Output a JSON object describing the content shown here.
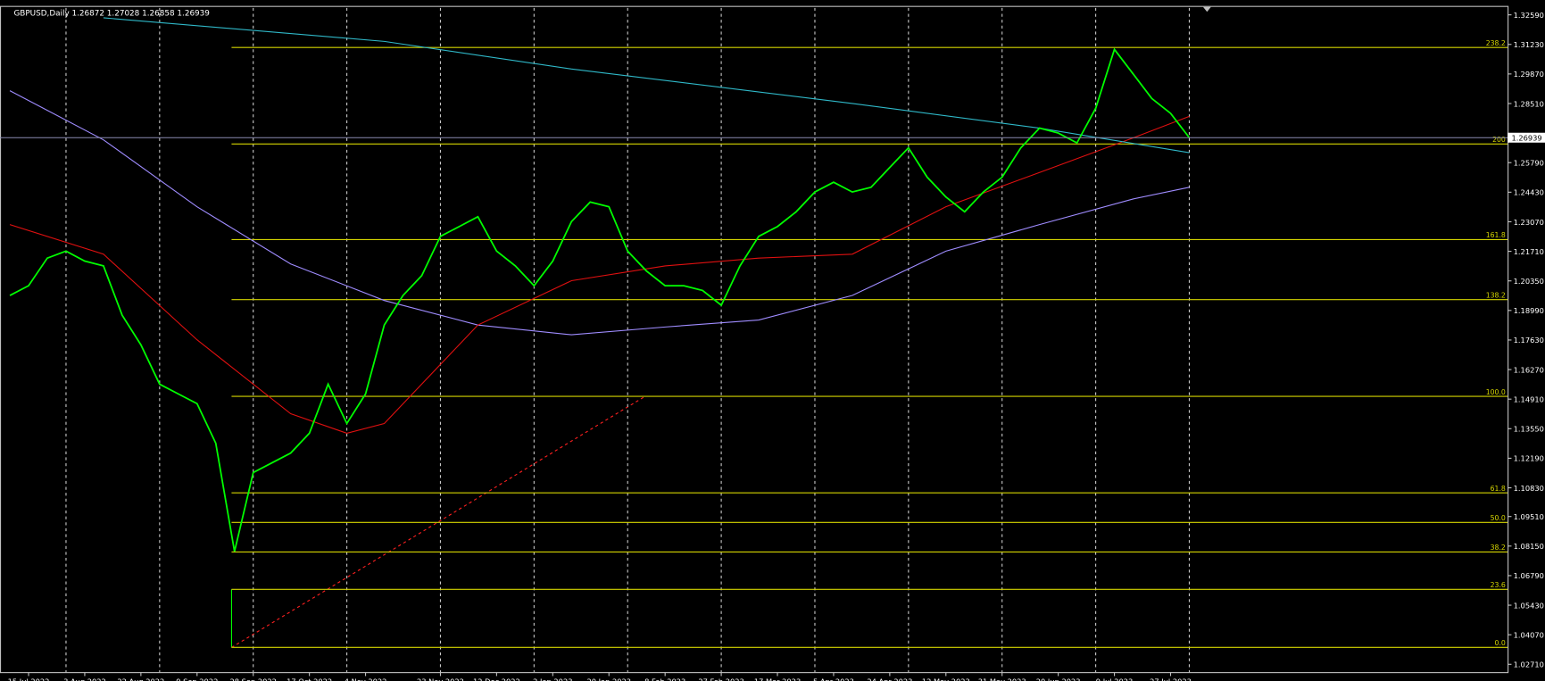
{
  "chart_data": {
    "type": "line",
    "title": "GBPUSD,Daily  1.26872 1.27028 1.26858 1.26939",
    "categories": [
      null,
      "15 Jul 2022",
      null,
      null,
      "3 Aug 2022",
      null,
      null,
      "22 Aug 2022",
      null,
      null,
      "9 Sep 2022",
      null,
      null,
      "28 Sep 2022",
      null,
      null,
      "17 Oct 2022",
      null,
      null,
      "4 Nov 2022",
      null,
      null,
      null,
      "23 Nov 2022",
      null,
      null,
      "12 Dec 2022",
      null,
      null,
      "2 Jan 2023",
      null,
      null,
      "20 Jan 2023",
      null,
      null,
      "8 Feb 2023",
      null,
      null,
      "27 Feb 2023",
      null,
      null,
      "17 Mar 2023",
      null,
      null,
      "5 Apr 2023",
      null,
      null,
      "24 Apr 2023",
      null,
      null,
      "12 May 2023",
      null,
      null,
      "31 May 2023",
      null,
      null,
      "20 Jun 2023",
      null,
      null,
      "9 Jul 2023",
      null,
      null,
      "27 Jul 2023",
      null
    ],
    "series": [
      {
        "color": "#00ff00",
        "values": [
          1.1968,
          1.2013,
          1.214,
          1.2172,
          1.2126,
          1.2104,
          1.1877,
          1.1741,
          1.156,
          1.1515,
          1.147,
          1.1288,
          1.079,
          1.1153,
          1.1198,
          1.1243,
          1.1334,
          1.156,
          1.1379,
          1.1515,
          1.1832,
          1.1968,
          1.2059,
          1.224,
          1.2285,
          1.233,
          1.2172,
          1.2104,
          1.2013,
          1.2126,
          1.2308,
          1.2398,
          1.2376,
          1.2172,
          1.2081,
          1.2013,
          1.2013,
          1.1991,
          1.1923,
          1.2104,
          1.224,
          1.2285,
          1.2353,
          1.2444,
          1.2489,
          1.2444,
          1.2466,
          1.2557,
          1.2647,
          1.2512,
          1.2421,
          1.2353,
          1.2444,
          1.2512,
          1.2647,
          1.2738,
          1.2715,
          1.267,
          1.2829,
          1.31,
          1.2987,
          1.2874,
          1.2806,
          1.2694
        ]
      }
    ],
    "indicators": [
      {
        "color": "#9f8cff",
        "x": [
          0,
          5,
          10,
          15,
          20,
          25,
          30,
          35,
          40,
          45,
          50,
          55,
          60,
          63
        ],
        "values": [
          1.291,
          1.2684,
          1.2376,
          1.2113,
          1.1945,
          1.1832,
          1.1787,
          1.1823,
          1.1855,
          1.1968,
          1.2172,
          1.2294,
          1.2412,
          1.2466
        ]
      },
      {
        "color": "#e01010",
        "x": [
          0,
          5,
          10,
          15,
          18,
          20,
          25,
          30,
          35,
          40,
          45,
          50,
          55,
          60,
          63
        ],
        "values": [
          1.2294,
          1.2158,
          1.1764,
          1.1424,
          1.1334,
          1.1379,
          1.1832,
          1.2036,
          1.2104,
          1.214,
          1.2158,
          1.2376,
          1.2534,
          1.2693,
          1.2792
        ]
      },
      {
        "color": "#2fb8c8",
        "x": [
          5,
          20,
          30,
          45,
          55,
          63
        ],
        "values": [
          1.3245,
          1.3137,
          1.301,
          1.2851,
          1.2738,
          1.2625
        ]
      }
    ],
    "ylim": [
      1.0235,
      1.3291
    ],
    "yticks": [
      {
        "value": 1.3259,
        "label": "1.32590"
      },
      {
        "value": 1.3123,
        "label": "1.31230"
      },
      {
        "value": 1.2987,
        "label": "1.29870"
      },
      {
        "value": 1.2851,
        "label": "1.28510"
      },
      {
        "value": 1.2579,
        "label": "1.25790"
      },
      {
        "value": 1.2443,
        "label": "1.24430"
      },
      {
        "value": 1.2307,
        "label": "1.23070"
      },
      {
        "value": 1.2171,
        "label": "1.21710"
      },
      {
        "value": 1.2035,
        "label": "1.20350"
      },
      {
        "value": 1.1899,
        "label": "1.18990"
      },
      {
        "value": 1.1763,
        "label": "1.17630"
      },
      {
        "value": 1.1627,
        "label": "1.16270"
      },
      {
        "value": 1.1491,
        "label": "1.14910"
      },
      {
        "value": 1.1355,
        "label": "1.13550"
      },
      {
        "value": 1.1219,
        "label": "1.12190"
      },
      {
        "value": 1.1083,
        "label": "1.10830"
      },
      {
        "value": 1.0951,
        "label": "1.09510"
      },
      {
        "value": 1.0815,
        "label": "1.08150"
      },
      {
        "value": 1.0679,
        "label": "1.06790"
      },
      {
        "value": 1.0543,
        "label": "1.05430"
      },
      {
        "value": 1.0407,
        "label": "1.04070"
      },
      {
        "value": 1.0271,
        "label": "1.02710"
      }
    ],
    "fib_levels": [
      {
        "value": 1.3109,
        "label": "238.2"
      },
      {
        "value": 1.2665,
        "label": "200"
      },
      {
        "value": 1.2225,
        "label": "161.8"
      },
      {
        "value": 1.1949,
        "label": "138.2"
      },
      {
        "value": 1.1504,
        "label": "100.0"
      },
      {
        "value": 1.106,
        "label": "61.8"
      },
      {
        "value": 1.0924,
        "label": "50.0"
      },
      {
        "value": 1.0788,
        "label": "38.2"
      },
      {
        "value": 1.0616,
        "label": "23.6"
      },
      {
        "value": 1.0349,
        "label": "0.0"
      }
    ],
    "current_price": 1.26939,
    "grid": true
  }
}
